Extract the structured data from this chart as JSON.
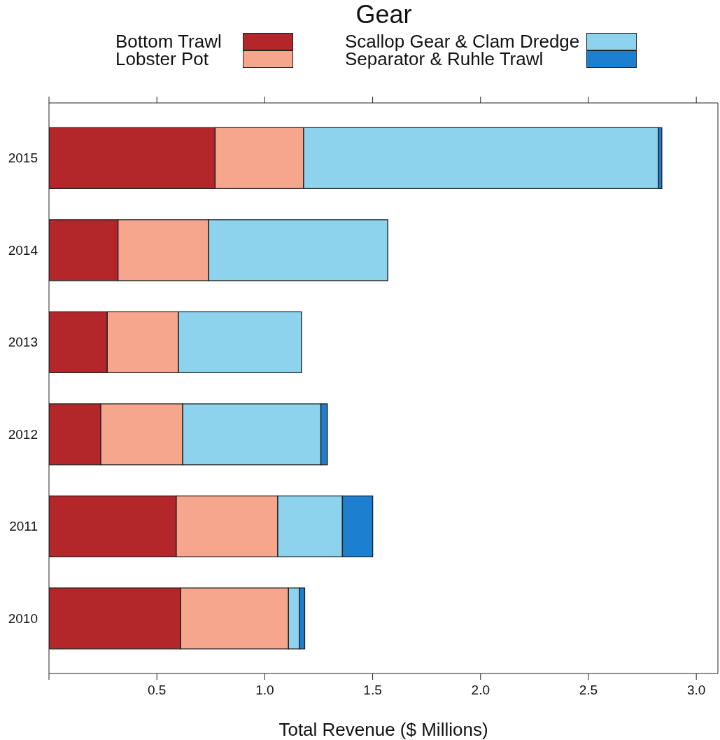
{
  "chart_data": {
    "type": "bar",
    "orientation": "horizontal",
    "stacked": true,
    "legend_title": "Gear",
    "legend": "top",
    "xlabel": "Total Revenue ($ Millions)",
    "categories": [
      "2015",
      "2014",
      "2013",
      "2012",
      "2011",
      "2010"
    ],
    "series": [
      {
        "name": "Bottom Trawl",
        "color": "#b3262a",
        "values": [
          0.77,
          0.32,
          0.27,
          0.24,
          0.59,
          0.61
        ]
      },
      {
        "name": "Lobster Pot",
        "color": "#f7a68e",
        "values": [
          0.41,
          0.42,
          0.33,
          0.38,
          0.47,
          0.5
        ]
      },
      {
        "name": "Scallop Gear & Clam Dredge",
        "color": "#8dd3ee",
        "values": [
          1.645,
          0.83,
          0.57,
          0.64,
          0.3,
          0.05
        ]
      },
      {
        "name": "Separator & Ruhle Trawl",
        "color": "#1c7fd0",
        "values": [
          0.015,
          0,
          0,
          0.03,
          0.14,
          0.025
        ]
      }
    ],
    "xlim": [
      0,
      3.1
    ],
    "xticks": [
      {
        "value": 0,
        "label": null
      },
      0.5,
      {
        "value": 1,
        "label": "1.0"
      },
      1.5,
      {
        "value": 2,
        "label": "2.0"
      },
      2.5,
      {
        "value": 3,
        "label": "3.0"
      }
    ]
  }
}
